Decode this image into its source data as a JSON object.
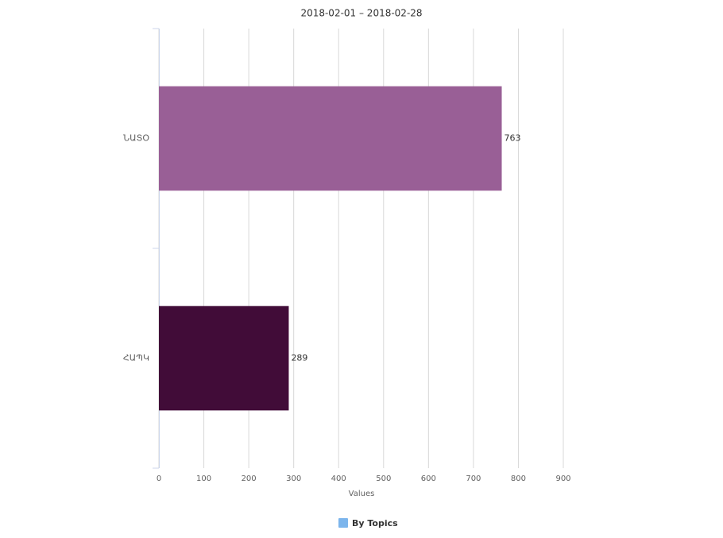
{
  "chart_data": {
    "type": "hbar",
    "title": "2018-02-01 – 2018-02-28",
    "categories": [
      "ՆԱՏՕ",
      "ՀԱՊԿ"
    ],
    "series": [
      {
        "name": "By Topics",
        "color": "#7cb5ec",
        "point_colors": [
          "#995f96",
          "#410c38"
        ],
        "values": [
          763,
          289
        ]
      }
    ],
    "x_label": "Values",
    "xlim": [
      0,
      900
    ],
    "xticks": [
      0,
      100,
      200,
      300,
      400,
      500,
      600,
      700,
      800,
      900
    ],
    "grid": true,
    "legend": "bottom"
  }
}
